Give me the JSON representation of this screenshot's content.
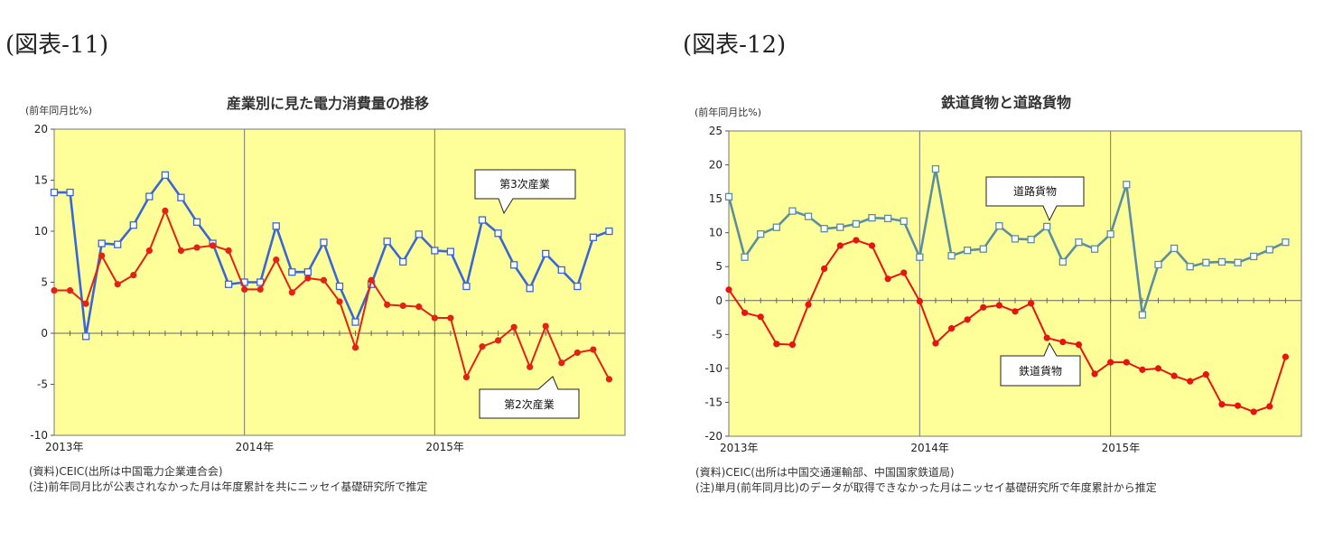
{
  "labels": {
    "left": "(図表-11)",
    "right": "(図表-12)"
  },
  "chart_data": [
    {
      "type": "line",
      "title": "産業別に見た電力消費量の推移",
      "unit": "(前年同月比%)",
      "x": [
        "2013-01",
        "2013-02",
        "2013-03",
        "2013-04",
        "2013-05",
        "2013-06",
        "2013-07",
        "2013-08",
        "2013-09",
        "2013-10",
        "2013-11",
        "2013-12",
        "2014-01",
        "2014-02",
        "2014-03",
        "2014-04",
        "2014-05",
        "2014-06",
        "2014-07",
        "2014-08",
        "2014-09",
        "2014-10",
        "2014-11",
        "2014-12",
        "2015-01",
        "2015-02",
        "2015-03",
        "2015-04",
        "2015-05",
        "2015-06",
        "2015-07",
        "2015-08",
        "2015-09",
        "2015-10",
        "2015-11",
        "2015-12"
      ],
      "x_tick_labels": [
        "2013年",
        "2014年",
        "2015年"
      ],
      "ylim": [
        -10,
        20
      ],
      "y_ticks": [
        -10,
        -5,
        0,
        5,
        10,
        15,
        20
      ],
      "series": [
        {
          "name": "第3次産業",
          "color": "#3A66D6",
          "marker": "square",
          "values": [
            13.8,
            13.8,
            -0.3,
            8.8,
            8.7,
            10.6,
            13.4,
            15.5,
            13.3,
            10.9,
            8.8,
            4.8,
            5.0,
            5.0,
            10.5,
            6.0,
            6.0,
            8.9,
            4.6,
            1.1,
            4.8,
            9.0,
            7.0,
            9.7,
            8.1,
            8.0,
            4.6,
            11.1,
            9.8,
            6.7,
            4.4,
            7.8,
            6.2,
            4.6,
            9.4,
            10.0
          ]
        },
        {
          "name": "第2次産業",
          "color": "#E32214",
          "marker": "circle",
          "values": [
            4.2,
            4.2,
            2.9,
            7.6,
            4.8,
            5.7,
            8.1,
            12.0,
            8.1,
            8.4,
            8.6,
            8.1,
            4.3,
            4.3,
            7.2,
            4.0,
            5.4,
            5.2,
            3.1,
            -1.4,
            5.2,
            2.8,
            2.7,
            2.6,
            1.5,
            1.5,
            -4.3,
            -1.3,
            -0.7,
            0.6,
            -3.3,
            0.7,
            -2.9,
            -1.9,
            -1.6,
            -4.5
          ]
        }
      ],
      "callouts": {
        "series_a": "第3次産業",
        "series_b": "第2次産業"
      },
      "notes": [
        "(資料)CEIC(出所は中国電力企業連合会)",
        "(注)前年同月比が公表されなかった月は年度累計を共にニッセイ基礎研究所で推定"
      ],
      "plot_bg": "#FFFF99",
      "grid": "vertical year lines and zero line"
    },
    {
      "type": "line",
      "title": "鉄道貨物と道路貨物",
      "unit": "(前年同月比%)",
      "x": [
        "2013-01",
        "2013-02",
        "2013-03",
        "2013-04",
        "2013-05",
        "2013-06",
        "2013-07",
        "2013-08",
        "2013-09",
        "2013-10",
        "2013-11",
        "2013-12",
        "2014-01",
        "2014-02",
        "2014-03",
        "2014-04",
        "2014-05",
        "2014-06",
        "2014-07",
        "2014-08",
        "2014-09",
        "2014-10",
        "2014-11",
        "2014-12",
        "2015-01",
        "2015-02",
        "2015-03",
        "2015-04",
        "2015-05",
        "2015-06",
        "2015-07",
        "2015-08",
        "2015-09",
        "2015-10",
        "2015-11",
        "2015-12"
      ],
      "x_tick_labels": [
        "2013年",
        "2014年",
        "2015年"
      ],
      "ylim": [
        -20,
        25
      ],
      "y_ticks": [
        -20,
        -15,
        -10,
        -5,
        0,
        5,
        10,
        15,
        20,
        25
      ],
      "series": [
        {
          "name": "道路貨物",
          "color": "#5B8FA0",
          "marker": "square",
          "values": [
            15.3,
            6.4,
            9.8,
            10.8,
            13.2,
            12.4,
            10.6,
            10.8,
            11.3,
            12.2,
            12.1,
            11.7,
            6.4,
            19.4,
            6.6,
            7.4,
            7.6,
            11.0,
            9.1,
            9.0,
            10.9,
            5.7,
            8.6,
            7.6,
            9.8,
            17.1,
            -2.1,
            5.3,
            7.7,
            5.0,
            5.6,
            5.7,
            5.6,
            6.5,
            7.5,
            8.6
          ]
        },
        {
          "name": "鉄道貨物",
          "color": "#E8140F",
          "marker": "circle",
          "values": [
            1.6,
            -1.8,
            -2.4,
            -6.4,
            -6.5,
            -0.6,
            4.7,
            8.1,
            8.9,
            8.1,
            3.2,
            4.1,
            -0.1,
            -6.3,
            -4.1,
            -2.8,
            -1.0,
            -0.7,
            -1.6,
            -0.4,
            -5.5,
            -6.1,
            -6.5,
            -10.8,
            -9.1,
            -9.1,
            -10.2,
            -10.0,
            -11.1,
            -11.9,
            -10.9,
            -15.3,
            -15.5,
            -16.4,
            -15.6,
            -8.3
          ]
        }
      ],
      "callouts": {
        "series_a": "道路貨物",
        "series_b": "鉄道貨物"
      },
      "notes": [
        "(資料)CEIC(出所は中国交通運輸部、中国国家鉄道局)",
        "(注)単月(前年同月比)のデータが取得できなかった月はニッセイ基礎研究所で年度累計から推定"
      ],
      "plot_bg": "#FFFF99",
      "grid": "vertical year lines and zero line"
    }
  ]
}
